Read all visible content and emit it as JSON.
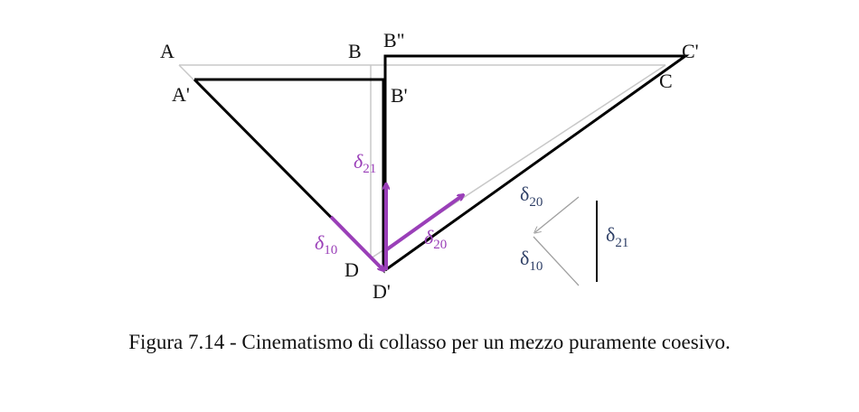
{
  "points": {
    "A": "A",
    "A_prime": "A'",
    "B": "B",
    "B_second": "B\"",
    "B_prime": "B'",
    "C": "C",
    "C_prime": "C'",
    "D": "D",
    "D_prime": "D'"
  },
  "vectors": {
    "d21": {
      "symbol": "δ",
      "subscript": "21"
    },
    "d10": {
      "symbol": "δ",
      "subscript": "10"
    },
    "d20": {
      "symbol": "δ",
      "subscript": "20"
    }
  },
  "legend": {
    "d20": {
      "symbol": "δ",
      "subscript": "20"
    },
    "d10": {
      "symbol": "δ",
      "subscript": "10"
    },
    "d21": {
      "symbol": "δ",
      "subscript": "21"
    }
  },
  "colors": {
    "vector": "#9a3fb8",
    "structure": "#000000",
    "reference": "#c8c8c8",
    "legend_text": "#2e3f66"
  },
  "caption": "Figura 7.14 - Cinematismo di collasso per un mezzo puramente coesivo."
}
